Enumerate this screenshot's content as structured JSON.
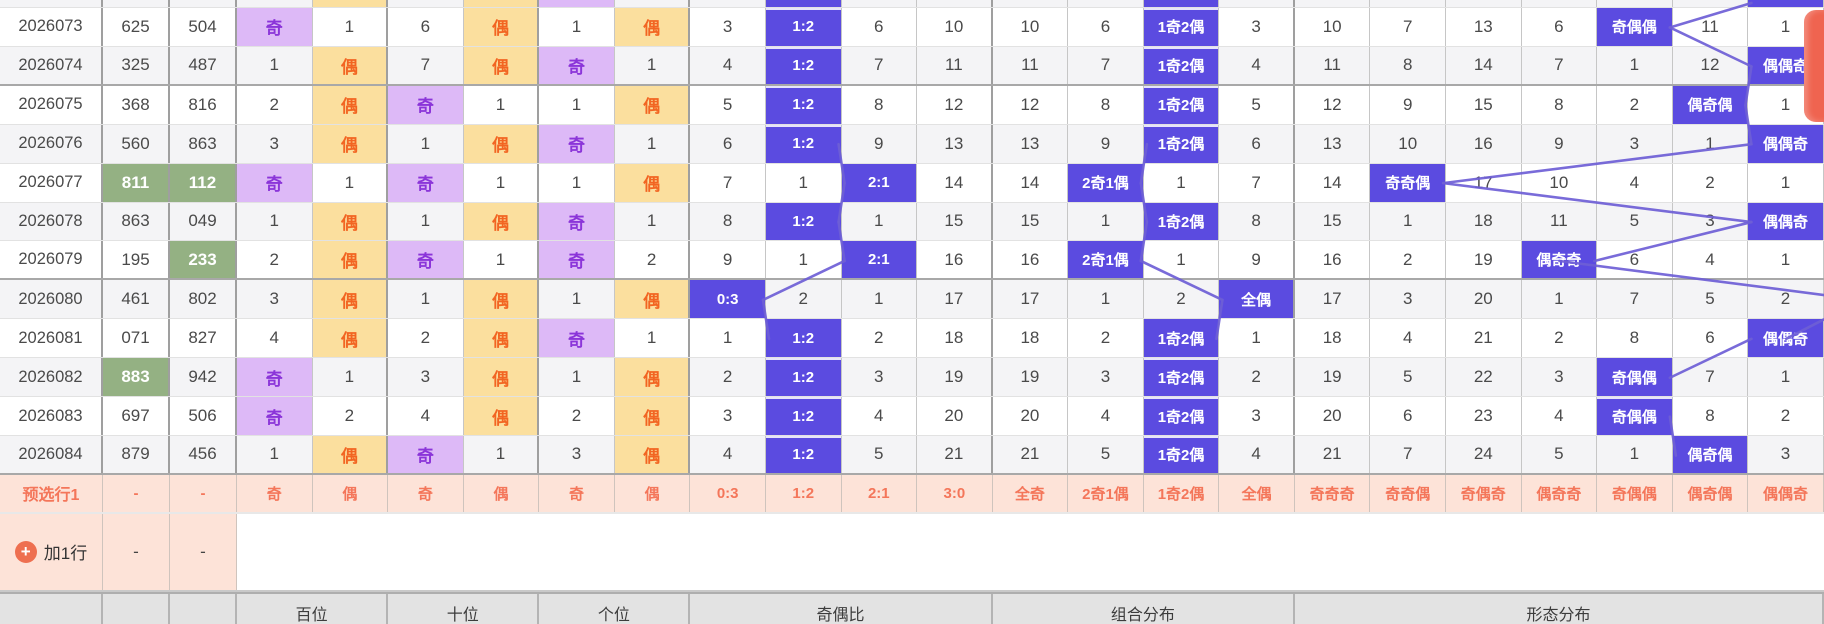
{
  "colors": {
    "hit_blue": "#5b4be0",
    "odd_bg": "#ddb9f7",
    "odd_text": "#8b35d9",
    "even_bg": "#fbdf9e",
    "even_text": "#f26522",
    "green_bg": "#94b183",
    "pink_bg": "#fde3d8",
    "pink_text": "#f4765a",
    "line": "#6e5fd6",
    "footer_bg": "#e3e3e3",
    "fab_red": "#ef6450"
  },
  "partial_top_row": {
    "hits": [
      {
        "col": 1,
        "type": "even"
      },
      {
        "col": 3,
        "type": "even"
      },
      {
        "col": 4,
        "type": "odd"
      },
      {
        "col": 7,
        "type": "blue"
      },
      {
        "col": 12,
        "type": "blue"
      },
      {
        "col": 20,
        "type": "blue"
      }
    ]
  },
  "rows": [
    {
      "period": "2026073",
      "nums": [
        {
          "v": "625",
          "green": false
        },
        {
          "v": "504",
          "green": false
        }
      ],
      "cells": [
        "奇",
        "1",
        "6",
        "偶",
        "1",
        "偶",
        "3",
        "1:2",
        "6",
        "10",
        "10",
        "6",
        "1奇2偶",
        "3",
        "10",
        "7",
        "13",
        "6",
        "奇偶偶",
        "11",
        "1"
      ]
    },
    {
      "period": "2026074",
      "nums": [
        {
          "v": "325",
          "green": false
        },
        {
          "v": "487",
          "green": false
        }
      ],
      "cells": [
        "1",
        "偶",
        "7",
        "偶",
        "奇",
        "1",
        "4",
        "1:2",
        "7",
        "11",
        "11",
        "7",
        "1奇2偶",
        "4",
        "11",
        "8",
        "14",
        "7",
        "1",
        "12",
        "偶偶奇"
      ]
    },
    {
      "period": "2026075",
      "nums": [
        {
          "v": "368",
          "green": false
        },
        {
          "v": "816",
          "green": false
        }
      ],
      "cells": [
        "2",
        "偶",
        "奇",
        "1",
        "1",
        "偶",
        "5",
        "1:2",
        "8",
        "12",
        "12",
        "8",
        "1奇2偶",
        "5",
        "12",
        "9",
        "15",
        "8",
        "2",
        "偶奇偶",
        "1"
      ]
    },
    {
      "period": "2026076",
      "nums": [
        {
          "v": "560",
          "green": false
        },
        {
          "v": "863",
          "green": false
        }
      ],
      "cells": [
        "3",
        "偶",
        "1",
        "偶",
        "奇",
        "1",
        "6",
        "1:2",
        "9",
        "13",
        "13",
        "9",
        "1奇2偶",
        "6",
        "13",
        "10",
        "16",
        "9",
        "3",
        "1",
        "偶偶奇"
      ]
    },
    {
      "period": "2026077",
      "nums": [
        {
          "v": "811",
          "green": true
        },
        {
          "v": "112",
          "green": true
        }
      ],
      "cells": [
        "奇",
        "1",
        "奇",
        "1",
        "1",
        "偶",
        "7",
        "1",
        "2:1",
        "14",
        "14",
        "2奇1偶",
        "1",
        "7",
        "14",
        "奇奇偶",
        "17",
        "10",
        "4",
        "2",
        "1"
      ]
    },
    {
      "period": "2026078",
      "nums": [
        {
          "v": "863",
          "green": false
        },
        {
          "v": "049",
          "green": false
        }
      ],
      "cells": [
        "1",
        "偶",
        "1",
        "偶",
        "奇",
        "1",
        "8",
        "1:2",
        "1",
        "15",
        "15",
        "1",
        "1奇2偶",
        "8",
        "15",
        "1",
        "18",
        "11",
        "5",
        "3",
        "偶偶奇"
      ]
    },
    {
      "period": "2026079",
      "nums": [
        {
          "v": "195",
          "green": false
        },
        {
          "v": "233",
          "green": true
        }
      ],
      "cells": [
        "2",
        "偶",
        "奇",
        "1",
        "奇",
        "2",
        "9",
        "1",
        "2:1",
        "16",
        "16",
        "2奇1偶",
        "1",
        "9",
        "16",
        "2",
        "19",
        "偶奇奇",
        "6",
        "4",
        "1"
      ]
    },
    {
      "period": "2026080",
      "nums": [
        {
          "v": "461",
          "green": false
        },
        {
          "v": "802",
          "green": false
        }
      ],
      "cells": [
        "3",
        "偶",
        "1",
        "偶",
        "1",
        "偶",
        "0:3",
        "2",
        "1",
        "17",
        "17",
        "1",
        "2",
        "全偶",
        "17",
        "3",
        "20",
        "1",
        "7",
        "5",
        "2"
      ]
    },
    {
      "period": "2026081",
      "nums": [
        {
          "v": "071",
          "green": false
        },
        {
          "v": "827",
          "green": false
        }
      ],
      "cells": [
        "4",
        "偶",
        "2",
        "偶",
        "奇",
        "1",
        "1",
        "1:2",
        "2",
        "18",
        "18",
        "2",
        "1奇2偶",
        "1",
        "18",
        "4",
        "21",
        "2",
        "8",
        "6",
        "偶偶奇"
      ]
    },
    {
      "period": "2026082",
      "nums": [
        {
          "v": "883",
          "green": true
        },
        {
          "v": "942",
          "green": false
        }
      ],
      "cells": [
        "奇",
        "1",
        "3",
        "偶",
        "1",
        "偶",
        "2",
        "1:2",
        "3",
        "19",
        "19",
        "3",
        "1奇2偶",
        "2",
        "19",
        "5",
        "22",
        "3",
        "奇偶偶",
        "7",
        "1"
      ]
    },
    {
      "period": "2026083",
      "nums": [
        {
          "v": "697",
          "green": false
        },
        {
          "v": "506",
          "green": false
        }
      ],
      "cells": [
        "奇",
        "2",
        "4",
        "偶",
        "2",
        "偶",
        "3",
        "1:2",
        "4",
        "20",
        "20",
        "4",
        "1奇2偶",
        "3",
        "20",
        "6",
        "23",
        "4",
        "奇偶偶",
        "8",
        "2"
      ]
    },
    {
      "period": "2026084",
      "nums": [
        {
          "v": "879",
          "green": false
        },
        {
          "v": "456",
          "green": false
        }
      ],
      "cells": [
        "1",
        "偶",
        "奇",
        "1",
        "3",
        "偶",
        "4",
        "1:2",
        "5",
        "21",
        "21",
        "5",
        "1奇2偶",
        "4",
        "21",
        "7",
        "24",
        "5",
        "1",
        "偶奇偶",
        "3"
      ]
    }
  ],
  "preselect_row": {
    "label": "预选行1",
    "placeholders": [
      "-",
      "-"
    ],
    "cells": [
      "奇",
      "偶",
      "奇",
      "偶",
      "奇",
      "偶",
      "0:3",
      "1:2",
      "2:1",
      "3:0",
      "全奇",
      "2奇1偶",
      "1奇2偶",
      "全偶",
      "奇奇奇",
      "奇奇偶",
      "奇偶奇",
      "偶奇奇",
      "奇偶偶",
      "偶奇偶",
      "偶偶奇"
    ]
  },
  "add_row": {
    "label": "加1行",
    "plus": "+",
    "placeholders": [
      "-",
      "-"
    ]
  },
  "footer_groups": [
    {
      "label": "",
      "span3left": 0
    },
    {
      "label": "",
      "span3left": 1
    },
    {
      "label": "",
      "span3left": 2
    },
    {
      "label": "百位",
      "span": 2
    },
    {
      "label": "十位",
      "span": 2
    },
    {
      "label": "个位",
      "span": 2
    },
    {
      "label": "奇偶比",
      "span": 4
    },
    {
      "label": "组合分布",
      "span": 4
    },
    {
      "label": "形态分布",
      "span": 7
    }
  ]
}
